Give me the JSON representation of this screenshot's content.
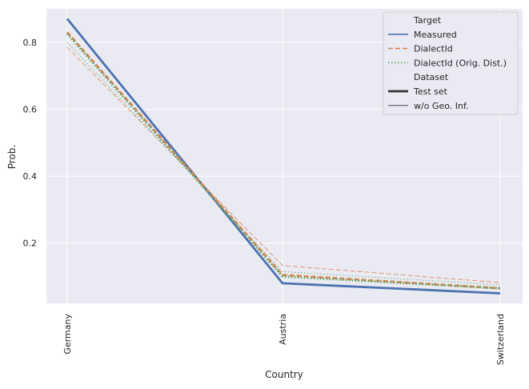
{
  "chart_data": {
    "type": "line",
    "categories": [
      "Germany",
      "Austria",
      "Switzerland"
    ],
    "xlabel": "Country",
    "ylabel": "Prob.",
    "ylim": [
      0.02,
      0.9
    ],
    "yticks": [
      0.2,
      0.4,
      0.6,
      0.8
    ],
    "ytick_labels": [
      "0.2",
      "0.4",
      "0.6",
      "0.8"
    ],
    "grid": true,
    "legend_position": "top-right",
    "series": [
      {
        "target": "Measured",
        "dataset": "Test set",
        "color": "#4c72b0",
        "dash": "solid",
        "width": "thick",
        "values": [
          0.87,
          0.08,
          0.05
        ]
      },
      {
        "target": "DialectId",
        "dataset": "Test set",
        "color": "#dd8452",
        "dash": "dashed",
        "width": "thick",
        "values": [
          0.83,
          0.105,
          0.065
        ]
      },
      {
        "target": "DialectId (Orig. Dist.)",
        "dataset": "Test set",
        "color": "#55a868",
        "dash": "dotted",
        "width": "thick",
        "values": [
          0.825,
          0.1,
          0.065
        ]
      },
      {
        "target": "DialectId",
        "dataset": "w/o Geo. Inf.",
        "color": "#dd8452",
        "dash": "dashed",
        "width": "thin",
        "values": [
          0.785,
          0.133,
          0.082
        ]
      },
      {
        "target": "DialectId (Orig. Dist.)",
        "dataset": "w/o Geo. Inf.",
        "color": "#55a868",
        "dash": "dotted",
        "width": "thin",
        "values": [
          0.8,
          0.115,
          0.075
        ]
      }
    ],
    "legend": {
      "target_title": "Target",
      "target_items": [
        {
          "label": "Measured",
          "color": "#4c72b0",
          "dash": "solid"
        },
        {
          "label": "DialectId",
          "color": "#dd8452",
          "dash": "dashed"
        },
        {
          "label": "DialectId (Orig. Dist.)",
          "color": "#55a868",
          "dash": "dotted"
        }
      ],
      "dataset_title": "Dataset",
      "dataset_items": [
        {
          "label": "Test set",
          "color": "#333333",
          "width": "thick"
        },
        {
          "label": "w/o Geo. Inf.",
          "color": "#333333",
          "width": "thin"
        }
      ]
    }
  }
}
